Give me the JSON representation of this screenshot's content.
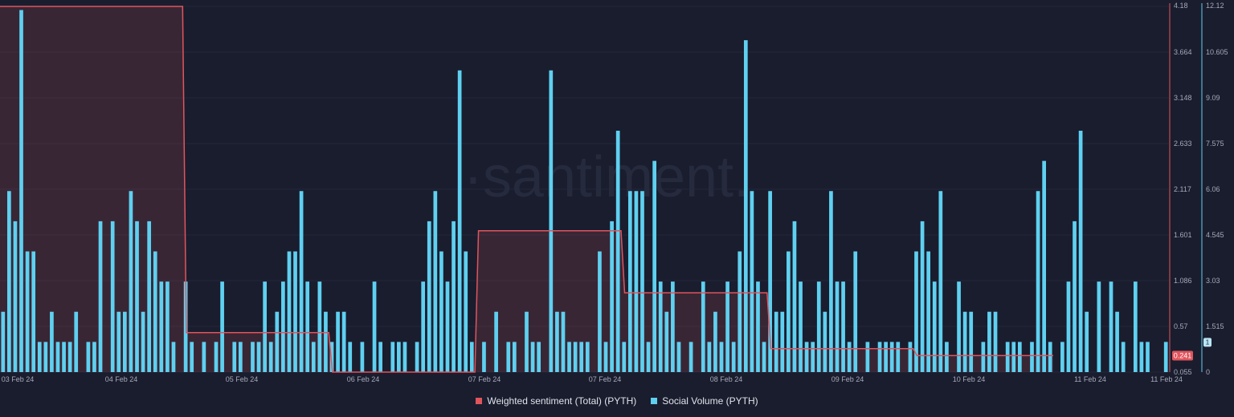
{
  "watermark": "·santiment.",
  "chart_data": {
    "type": "bar+line",
    "x_labels": [
      "03 Feb 24",
      "04 Feb 24",
      "05 Feb 24",
      "06 Feb 24",
      "07 Feb 24",
      "07 Feb 24",
      "08 Feb 24",
      "09 Feb 24",
      "10 Feb 24",
      "11 Feb 24",
      "11 Feb 24"
    ],
    "left_axis_ticks": [
      "4.18",
      "3.664",
      "3.148",
      "2.633",
      "2.117",
      "1.601",
      "1.086",
      "0.57",
      "0.055"
    ],
    "left_axis_range": [
      0.055,
      4.18
    ],
    "right_axis_ticks": [
      "12.12",
      "10.605",
      "9.09",
      "7.575",
      "6.06",
      "4.545",
      "3.03",
      "1.515",
      "0"
    ],
    "right_axis_range": [
      0,
      12.12
    ],
    "sentiment_current_label": "0.241",
    "volume_current_label": "1",
    "series": [
      {
        "name": "Weighted sentiment (Total) (PYTH)",
        "type": "area-step",
        "color": "#e0555c",
        "segments": [
          {
            "from": 0,
            "to": 30,
            "value": 4.18
          },
          {
            "from": 30,
            "to": 54,
            "value": 0.5
          },
          {
            "from": 54,
            "to": 78,
            "value": 0.055
          },
          {
            "from": 78,
            "to": 102,
            "value": 1.65
          },
          {
            "from": 102,
            "to": 126,
            "value": 0.95
          },
          {
            "from": 126,
            "to": 150,
            "value": 0.32
          },
          {
            "from": 150,
            "to": 173,
            "value": 0.241
          }
        ]
      },
      {
        "name": "Social Volume (PYTH)",
        "type": "bar",
        "color": "#5fd0f0",
        "values": [
          2,
          6,
          5,
          12,
          4,
          4,
          1,
          1,
          2,
          1,
          1,
          1,
          2,
          0,
          1,
          1,
          5,
          0,
          5,
          2,
          2,
          6,
          5,
          2,
          5,
          4,
          3,
          3,
          1,
          0,
          3,
          1,
          0,
          1,
          0,
          1,
          3,
          0,
          1,
          1,
          0,
          1,
          1,
          3,
          1,
          2,
          3,
          4,
          4,
          6,
          3,
          1,
          3,
          2,
          1,
          2,
          2,
          1,
          0,
          1,
          0,
          3,
          1,
          0,
          1,
          1,
          1,
          0,
          1,
          3,
          5,
          6,
          4,
          3,
          5,
          10,
          4,
          1,
          0,
          1,
          0,
          2,
          0,
          1,
          1,
          0,
          2,
          1,
          1,
          0,
          10,
          2,
          2,
          1,
          1,
          1,
          1,
          0,
          4,
          1,
          5,
          8,
          1,
          6,
          6,
          6,
          1,
          7,
          3,
          2,
          3,
          1,
          0,
          1,
          0,
          3,
          1,
          2,
          1,
          3,
          1,
          4,
          11,
          6,
          3,
          1,
          6,
          2,
          2,
          4,
          5,
          3,
          1,
          1,
          3,
          2,
          6,
          3,
          3,
          1,
          4,
          0,
          1,
          0,
          1,
          1,
          1,
          1,
          0,
          1,
          4,
          5,
          4,
          3,
          6,
          1,
          0,
          3,
          2,
          2,
          0,
          1,
          2,
          2,
          0,
          1,
          1,
          1,
          0,
          1,
          6,
          7,
          1,
          0,
          1,
          3,
          5,
          8,
          2,
          0,
          3,
          0,
          3,
          2,
          1,
          0,
          3,
          1,
          1,
          0,
          0,
          1
        ]
      }
    ],
    "legend": "bottom-center"
  }
}
